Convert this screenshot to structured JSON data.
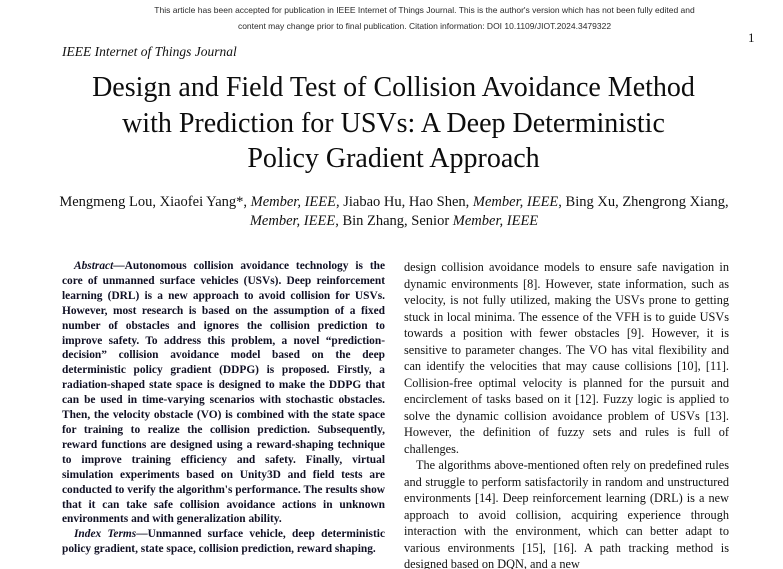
{
  "notice": {
    "line1": "This article has been accepted for publication in IEEE Internet of Things Journal. This is the author's version which has not been fully edited and",
    "line2": "content may change prior to final publication. Citation information: DOI 10.1109/JIOT.2024.3479322"
  },
  "header": {
    "page_number": "1",
    "journal_name": "IEEE Internet of Things Journal"
  },
  "title": {
    "line1": "Design and Field Test of Collision Avoidance Method",
    "line2": "with Prediction for USVs: A Deep Deterministic",
    "line3": "Policy Gradient Approach"
  },
  "authors": {
    "l1s1": "Mengmeng Lou, Xiaofei Yang*, ",
    "l1s2": "Member, IEEE",
    "l1s3": ", Jiabao Hu, Hao Shen, ",
    "l1s4": "Member, IEEE",
    "l1s5": ", Bing Xu, Zhengrong Xiang,",
    "l2s1": "Member, IEEE",
    "l2s2": ", Bin Zhang, Senior ",
    "l2s3": "Member, IEEE"
  },
  "abstract": {
    "label": "Abstract",
    "text": "—Autonomous collision avoidance technology is the core of unmanned surface vehicles (USVs). Deep reinforcement learning (DRL) is a new approach to avoid collision for USVs. However, most research is based on the assumption of a fixed number of obstacles and ignores the collision prediction to improve safety. To address this problem, a novel “prediction-decision” collision avoidance model based on the deep deterministic policy gradient (DDPG) is proposed. Firstly, a radiation-shaped state space is designed to make the DDPG that can be used in time-varying scenarios with stochastic obstacles. Then, the velocity obstacle (VO) is combined with the state space for training to realize the collision prediction. Subsequently, reward functions are designed using a reward-shaping technique to improve training efficiency and safety. Finally, virtual simulation experiments based on Unity3D and field tests are conducted to verify the algorithm's performance. The results show that it can take safe collision avoidance actions in unknown environments and with generalization ability."
  },
  "index_terms": {
    "label": "Index Terms",
    "text": "—Unmanned surface vehicle, deep deterministic policy gradient, state space, collision prediction, reward shaping."
  },
  "body": {
    "paragraph1": "design collision avoidance models to ensure safe navigation in dynamic environments [8]. However, state information, such as velocity, is not fully utilized, making the USVs prone to getting stuck in local minima. The essence of the VFH is to guide USVs towards a position with fewer obstacles [9]. However, it is sensitive to parameter changes. The VO has vital flexibility and can identify the velocities that may cause collisions [10], [11]. Collision-free optimal velocity is planned for the pursuit and encirclement of tasks based on it [12]. Fuzzy logic is applied to solve the dynamic collision avoidance problem of USVs [13]. However, the definition of fuzzy sets and rules is full of challenges.",
    "paragraph2": "The algorithms above-mentioned often rely on predefined rules and struggle to perform satisfactorily in random and unstructured environments [14]. Deep reinforcement learning (DRL) is a new approach to avoid collision, acquiring experience through interaction with the environment, which can better adapt to various environments [15], [16]. A path tracking method is designed based on DQN, and a new"
  }
}
